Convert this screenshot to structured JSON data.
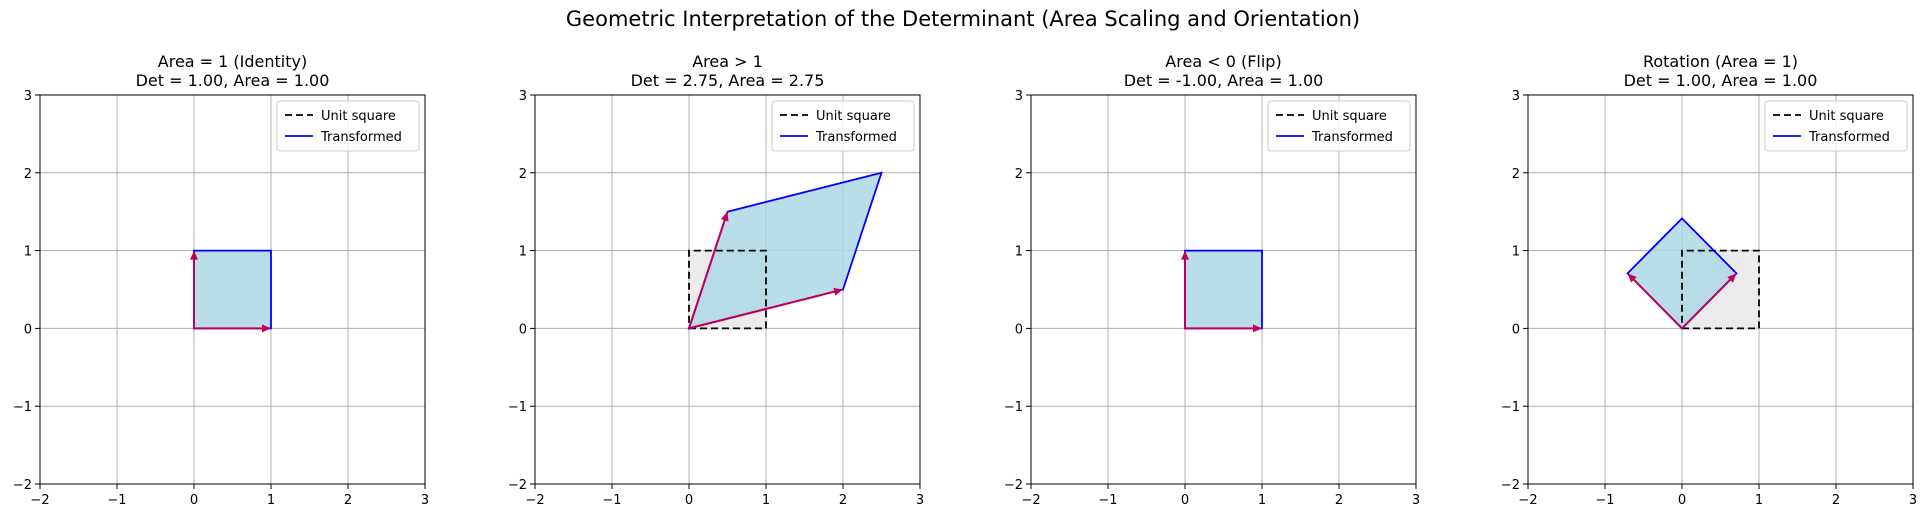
{
  "figure": {
    "title": "Geometric Interpretation of the Determinant (Area Scaling and Orientation)"
  },
  "colors": {
    "unit_square_fill": "#ebebeb",
    "unit_square_edge": "#000000",
    "transformed_fill": "#add8e6",
    "transformed_edge": "#0000ff",
    "vector_arrow": "#c0005a",
    "grid": "#b0b0b0",
    "axes_frame": "#000000"
  },
  "chart_data": [
    {
      "type": "area",
      "title": "Area = 1 (Identity)",
      "subtitle": "Det = 1.00, Area = 1.00",
      "xlim": [
        -2,
        3
      ],
      "ylim": [
        -2,
        3
      ],
      "xticks": [
        "−2",
        "−1",
        "0",
        "1",
        "2",
        "3"
      ],
      "yticks": [
        "−2",
        "−1",
        "0",
        "1",
        "2",
        "3"
      ],
      "grid": true,
      "legend_position": "top-right",
      "show_unit_square": false,
      "unit_square": [
        [
          0,
          0
        ],
        [
          1,
          0
        ],
        [
          1,
          1
        ],
        [
          0,
          1
        ]
      ],
      "transformed": [
        [
          0,
          0
        ],
        [
          1,
          0
        ],
        [
          1,
          1
        ],
        [
          0,
          1
        ]
      ],
      "basis_vectors": [
        [
          1,
          0
        ],
        [
          0,
          1
        ]
      ],
      "legend": [
        "Unit square",
        "Transformed"
      ]
    },
    {
      "type": "area",
      "title": "Area > 1",
      "subtitle": "Det = 2.75, Area = 2.75",
      "xlim": [
        -2,
        3
      ],
      "ylim": [
        -2,
        3
      ],
      "xticks": [
        "−2",
        "−1",
        "0",
        "1",
        "2",
        "3"
      ],
      "yticks": [
        "−2",
        "−1",
        "0",
        "1",
        "2",
        "3"
      ],
      "grid": true,
      "legend_position": "top-right",
      "show_unit_square": true,
      "unit_square": [
        [
          0,
          0
        ],
        [
          1,
          0
        ],
        [
          1,
          1
        ],
        [
          0,
          1
        ]
      ],
      "transformed": [
        [
          0,
          0
        ],
        [
          2,
          0.5
        ],
        [
          2.5,
          2
        ],
        [
          0.5,
          1.5
        ]
      ],
      "basis_vectors": [
        [
          2,
          0.5
        ],
        [
          0.5,
          1.5
        ]
      ],
      "legend": [
        "Unit square",
        "Transformed"
      ]
    },
    {
      "type": "area",
      "title": "Area < 0 (Flip)",
      "subtitle": "Det = -1.00, Area = 1.00",
      "xlim": [
        -2,
        3
      ],
      "ylim": [
        -2,
        3
      ],
      "xticks": [
        "−2",
        "−1",
        "0",
        "1",
        "2",
        "3"
      ],
      "yticks": [
        "−2",
        "−1",
        "0",
        "1",
        "2",
        "3"
      ],
      "grid": true,
      "legend_position": "top-right",
      "show_unit_square": false,
      "unit_square": [
        [
          0,
          0
        ],
        [
          1,
          0
        ],
        [
          1,
          1
        ],
        [
          0,
          1
        ]
      ],
      "transformed": [
        [
          0,
          0
        ],
        [
          0,
          1
        ],
        [
          1,
          1
        ],
        [
          1,
          0
        ]
      ],
      "basis_vectors": [
        [
          0,
          1
        ],
        [
          1,
          0
        ]
      ],
      "legend": [
        "Unit square",
        "Transformed"
      ]
    },
    {
      "type": "area",
      "title": "Rotation (Area = 1)",
      "subtitle": "Det = 1.00, Area = 1.00",
      "xlim": [
        -2,
        3
      ],
      "ylim": [
        -2,
        3
      ],
      "xticks": [
        "−2",
        "−1",
        "0",
        "1",
        "2",
        "3"
      ],
      "yticks": [
        "−2",
        "−1",
        "0",
        "1",
        "2",
        "3"
      ],
      "grid": true,
      "legend_position": "top-right",
      "show_unit_square": true,
      "unit_square": [
        [
          0,
          0
        ],
        [
          1,
          0
        ],
        [
          1,
          1
        ],
        [
          0,
          1
        ]
      ],
      "transformed": [
        [
          0,
          0
        ],
        [
          0.7071,
          0.7071
        ],
        [
          0,
          1.4142
        ],
        [
          -0.7071,
          0.7071
        ]
      ],
      "basis_vectors": [
        [
          0.7071,
          0.7071
        ],
        [
          -0.7071,
          0.7071
        ]
      ],
      "legend": [
        "Unit square",
        "Transformed"
      ]
    }
  ]
}
